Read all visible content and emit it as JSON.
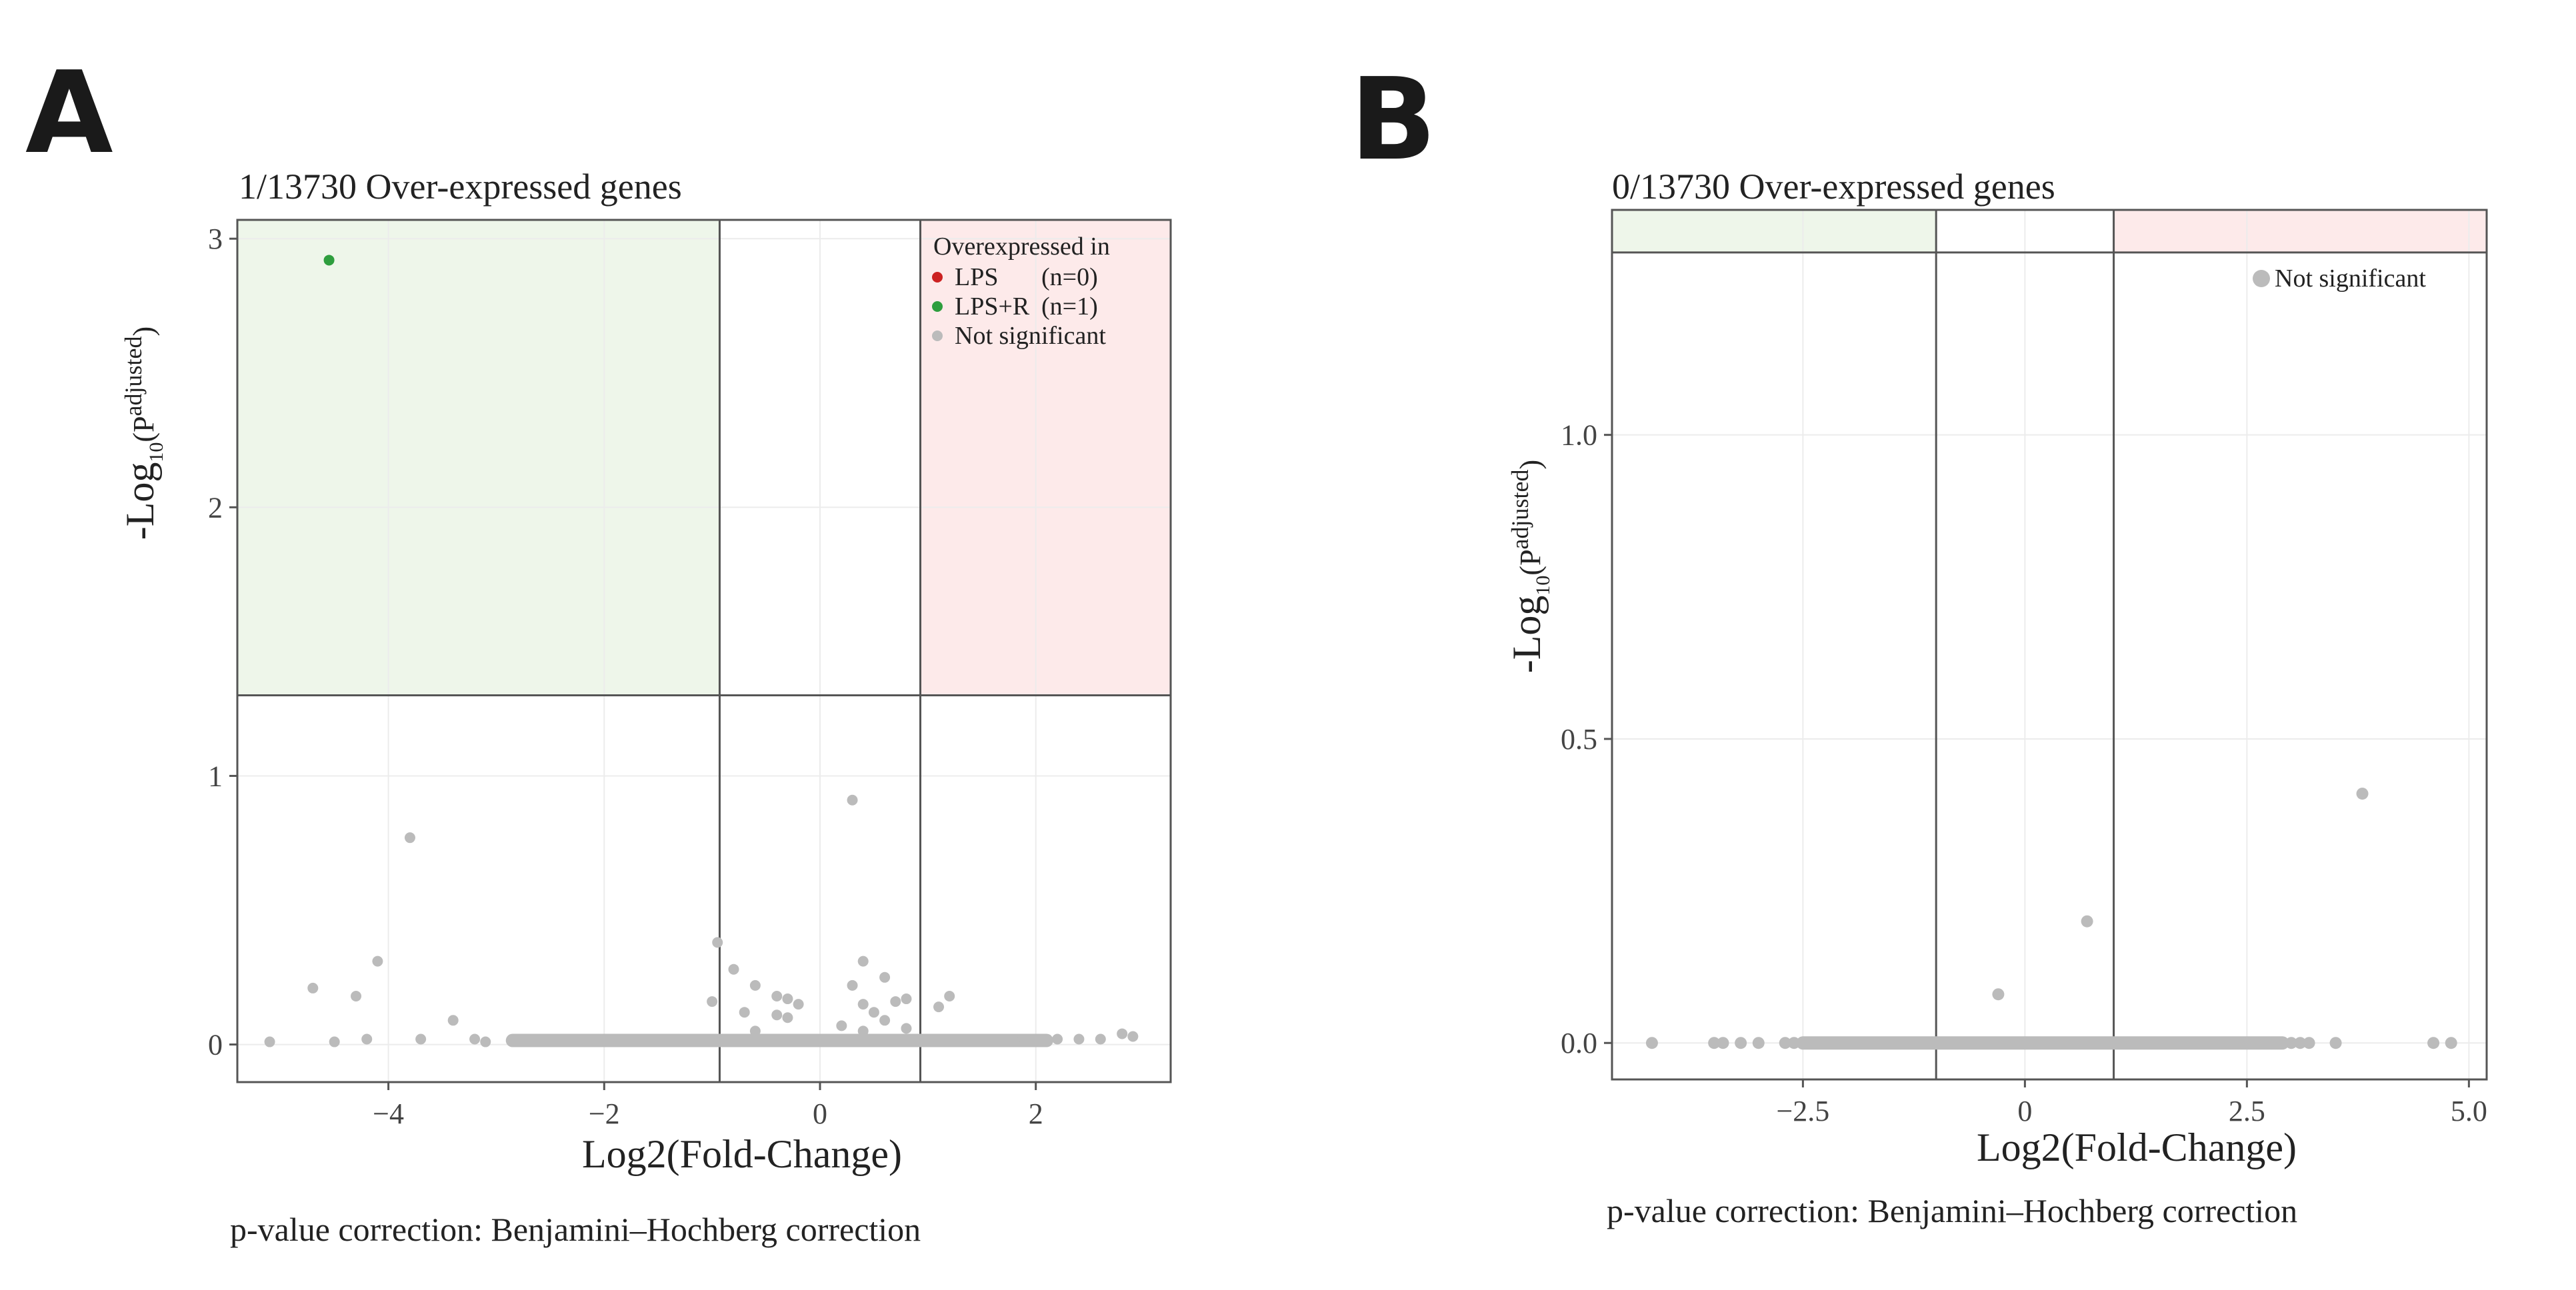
{
  "chart_data": [
    {
      "panel_label": "A",
      "type": "scatter",
      "title": "1/13730  Over-expressed genes",
      "xlabel": "Log2(Fold-Change)",
      "ylabel_main": "-Log",
      "ylabel_sub": "10",
      "ylabel_paren_open": "(P",
      "ylabel_sup": "adjusted",
      "ylabel_paren_close": ")",
      "footer": "p-value correction: Benjamini–Hochberg correction",
      "xlim": [
        -5.4,
        3.25
      ],
      "ylim": [
        -0.14,
        3.07
      ],
      "xticks": [
        -4,
        -2,
        0,
        2
      ],
      "xtick_labels": [
        "−4",
        "−2",
        "0",
        "2"
      ],
      "yticks": [
        0,
        1,
        2,
        3
      ],
      "ytick_labels": [
        "0",
        "1",
        "2",
        "3"
      ],
      "fc_threshold": [
        -0.93,
        0.93
      ],
      "p_threshold": 1.3,
      "shaded_regions": {
        "down": "#eef6ea",
        "up": "#fdeaea"
      },
      "legend": {
        "title": "Overexpressed in",
        "position": "top-right",
        "entries": [
          {
            "label": "LPS",
            "count": "(n=0)",
            "color": "#cc2222"
          },
          {
            "label": "LPS+R",
            "count": "(n=1)",
            "color": "#2e9e3e"
          },
          {
            "label": "Not significant",
            "count": "",
            "color": "#bbbbbb"
          }
        ]
      },
      "series": [
        {
          "name": "LPS+R",
          "color": "#2e9e3e",
          "points": [
            [
              -4.55,
              2.92
            ]
          ]
        },
        {
          "name": "Not significant",
          "color": "#bbbbbb",
          "points": [
            [
              0.3,
              0.91
            ],
            [
              -3.8,
              0.77
            ],
            [
              -0.95,
              0.38
            ],
            [
              -4.1,
              0.31
            ],
            [
              0.4,
              0.31
            ],
            [
              -0.8,
              0.28
            ],
            [
              0.6,
              0.25
            ],
            [
              -4.7,
              0.21
            ],
            [
              -0.6,
              0.22
            ],
            [
              0.3,
              0.22
            ],
            [
              -0.4,
              0.18
            ],
            [
              -4.3,
              0.18
            ],
            [
              1.2,
              0.18
            ],
            [
              -0.3,
              0.17
            ],
            [
              0.8,
              0.17
            ],
            [
              -1.0,
              0.16
            ],
            [
              -0.2,
              0.15
            ],
            [
              0.4,
              0.15
            ],
            [
              0.7,
              0.16
            ],
            [
              1.1,
              0.14
            ],
            [
              -0.7,
              0.12
            ],
            [
              0.5,
              0.12
            ],
            [
              -0.4,
              0.11
            ],
            [
              -0.3,
              0.1
            ],
            [
              0.6,
              0.09
            ],
            [
              -3.4,
              0.09
            ],
            [
              0.2,
              0.07
            ],
            [
              0.8,
              0.06
            ],
            [
              -0.6,
              0.05
            ],
            [
              0.4,
              0.05
            ],
            [
              2.8,
              0.04
            ],
            [
              -4.2,
              0.02
            ],
            [
              -3.7,
              0.02
            ],
            [
              -3.2,
              0.02
            ],
            [
              -2.8,
              0.02
            ],
            [
              -5.1,
              0.01
            ],
            [
              -4.5,
              0.01
            ],
            [
              -3.1,
              0.01
            ],
            [
              2.9,
              0.03
            ],
            [
              2.6,
              0.02
            ],
            [
              2.4,
              0.02
            ],
            [
              2.2,
              0.02
            ],
            [
              2.05,
              0.01
            ],
            [
              1.8,
              0.01
            ]
          ]
        }
      ],
      "baseline_band": {
        "x_range": [
          -2.85,
          2.1
        ],
        "y": 0.015
      }
    },
    {
      "panel_label": "B",
      "type": "scatter",
      "title": "0/13730  Over-expressed genes",
      "xlabel": "Log2(Fold-Change)",
      "ylabel_main": "-Log",
      "ylabel_sub": "10",
      "ylabel_paren_open": "(P",
      "ylabel_sup": "adjusted",
      "ylabel_paren_close": ")",
      "footer": "p-value correction: Benjamini–Hochberg correction",
      "xlim": [
        -4.65,
        5.2
      ],
      "ylim": [
        -0.06,
        1.37
      ],
      "xticks": [
        -2.5,
        0,
        2.5,
        5.0
      ],
      "xtick_labels": [
        "−2.5",
        "0",
        "2.5",
        "5.0"
      ],
      "yticks": [
        0.0,
        0.5,
        1.0
      ],
      "ytick_labels": [
        "0.0",
        "0.5",
        "1.0"
      ],
      "fc_threshold": [
        -1.0,
        1.0
      ],
      "p_threshold": 1.3,
      "shaded_regions": {
        "down": "#eef6ea",
        "up": "#fdeaea"
      },
      "legend": {
        "position": "top-right",
        "entries": [
          {
            "label": "Not significant",
            "count": "",
            "color": "#bbbbbb"
          }
        ]
      },
      "series": [
        {
          "name": "Not significant",
          "color": "#bbbbbb",
          "points": [
            [
              3.8,
              0.41
            ],
            [
              0.7,
              0.2
            ],
            [
              -0.3,
              0.08
            ],
            [
              -4.2,
              0.0
            ],
            [
              -3.5,
              0.0
            ],
            [
              -3.4,
              0.0
            ],
            [
              -3.2,
              0.0
            ],
            [
              -3.0,
              0.0
            ],
            [
              -2.7,
              0.0
            ],
            [
              -2.6,
              0.0
            ],
            [
              3.0,
              0.0
            ],
            [
              3.1,
              0.0
            ],
            [
              3.2,
              0.0
            ],
            [
              3.5,
              0.0
            ],
            [
              4.6,
              0.0
            ],
            [
              4.8,
              0.0
            ]
          ]
        }
      ],
      "baseline_band": {
        "x_range": [
          -2.5,
          2.9
        ],
        "y": 0.0
      }
    }
  ]
}
